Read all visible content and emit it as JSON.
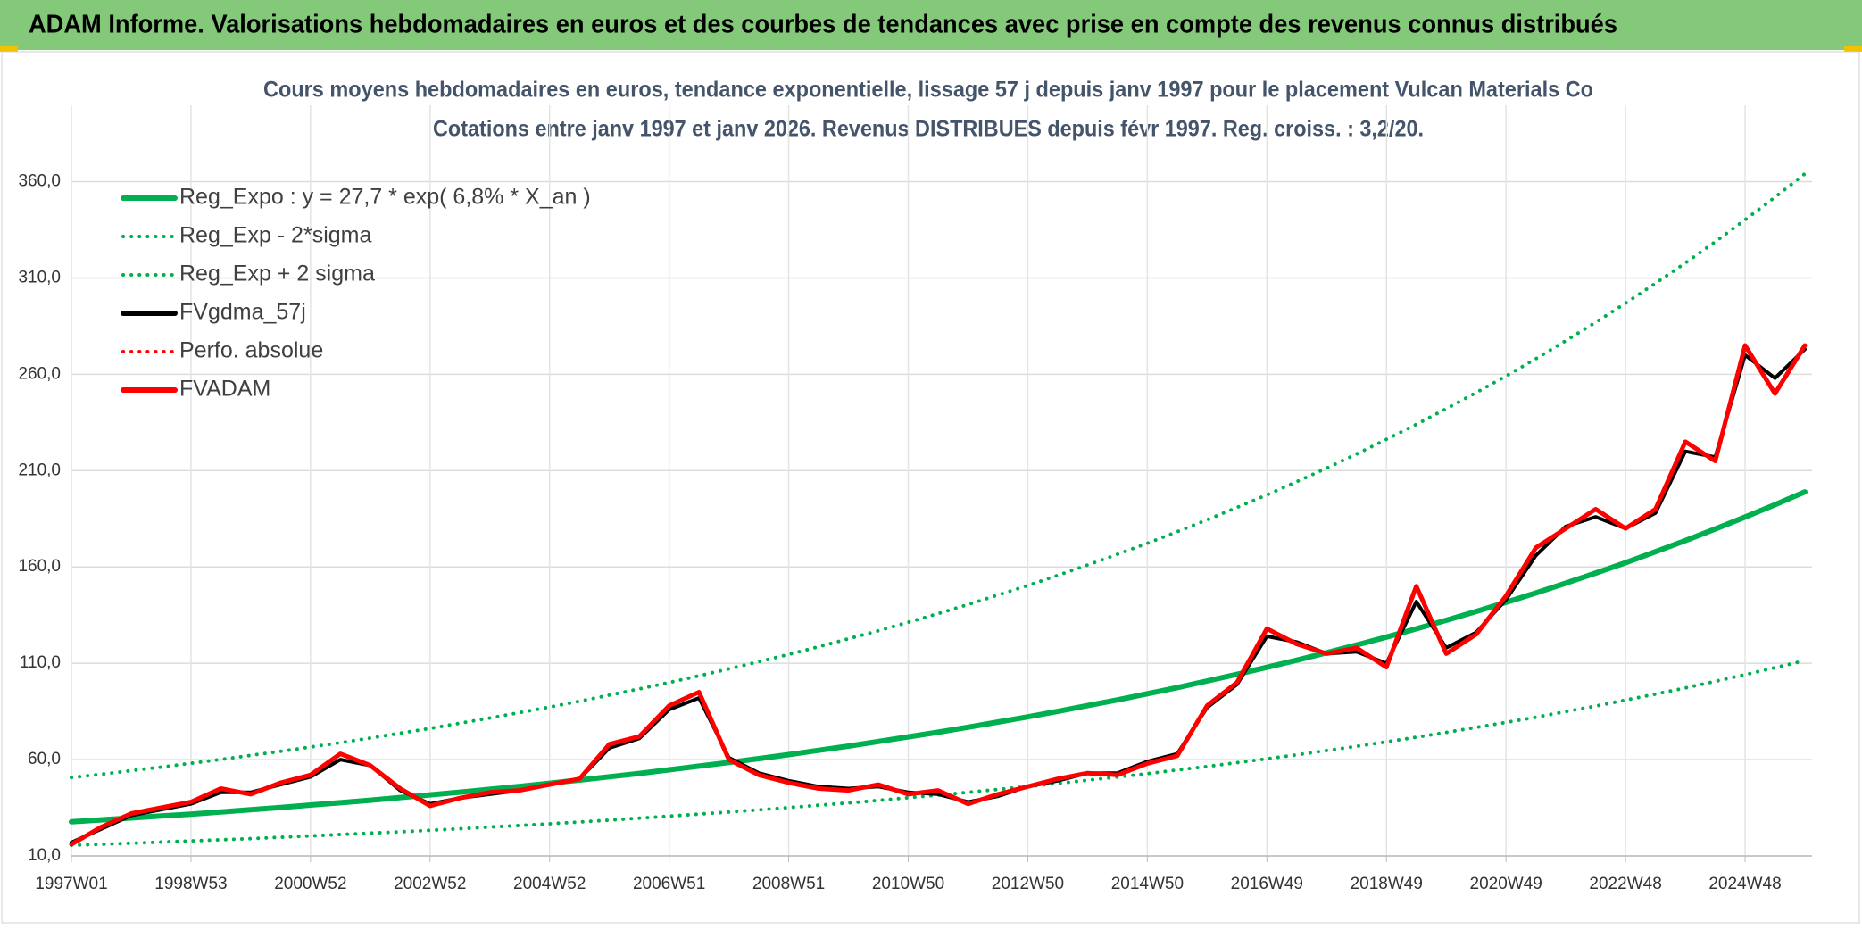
{
  "header": {
    "title": "ADAM Informe. Valorisations hebdomadaires en euros et des courbes de tendances avec prise en compte des revenus connus distribués"
  },
  "chart_data": {
    "type": "line",
    "title": "Cours moyens hebdomadaires en euros, tendance exponentielle, lissage 57 j depuis janv 1997 pour le placement Vulcan Materials Co",
    "subtitle": "Cotations entre janv 1997 et janv 2026. Revenus DISTRIBUES depuis févr 1997. Reg. croiss. : 3,2/20.",
    "categories": [
      "1997W01",
      null,
      null,
      null,
      "1998W53",
      null,
      null,
      null,
      "2000W52",
      null,
      null,
      null,
      "2002W52",
      null,
      null,
      null,
      "2004W52",
      null,
      null,
      null,
      "2006W51",
      null,
      null,
      null,
      "2008W51",
      null,
      null,
      null,
      "2010W50",
      null,
      null,
      null,
      "2012W50",
      null,
      null,
      null,
      "2014W50",
      null,
      null,
      null,
      "2016W49",
      null,
      null,
      null,
      "2018W49",
      null,
      null,
      null,
      "2020W49",
      null,
      null,
      null,
      "2022W48",
      null,
      null,
      null,
      "2024W48",
      null,
      null
    ],
    "ylim": [
      10,
      395
    ],
    "yticks": [
      {
        "value": 10,
        "label": "10,0"
      },
      {
        "value": 60,
        "label": "60,0"
      },
      {
        "value": 110,
        "label": "110,0"
      },
      {
        "value": 160,
        "label": "160,0"
      },
      {
        "value": 210,
        "label": "210,0"
      },
      {
        "value": 260,
        "label": "260,0"
      },
      {
        "value": 310,
        "label": "310,0"
      },
      {
        "value": 360,
        "label": "360,0"
      }
    ],
    "grid": true,
    "legend": "upper left",
    "series": [
      {
        "name": "Reg_Expo : y = 27,7 * exp( 6,8% *  X_an )",
        "color": "#00b050",
        "dotted": false,
        "values": [
          27.7,
          28.7,
          29.7,
          30.7,
          31.7,
          32.8,
          34.0,
          35.1,
          36.4,
          37.6,
          38.9,
          40.3,
          41.7,
          43.1,
          44.6,
          46.1,
          47.7,
          49.4,
          51.1,
          52.8,
          54.7,
          56.6,
          58.5,
          60.5,
          62.6,
          64.8,
          67.0,
          69.4,
          71.8,
          74.2,
          76.8,
          79.5,
          82.2,
          85.0,
          88.0,
          91.0,
          94.2,
          97.4,
          100.8,
          104.3,
          107.9,
          111.6,
          115.5,
          119.5,
          123.6,
          127.9,
          132.3,
          136.9,
          141.6,
          146.5,
          151.6,
          156.8,
          162.2,
          167.9,
          173.7,
          179.7,
          185.9,
          192.3,
          199.0
        ]
      },
      {
        "name": "Reg_Exp - 2*sigma",
        "color": "#00b050",
        "dotted": true,
        "values": [
          15.5,
          16.0,
          16.6,
          17.2,
          17.8,
          18.4,
          19.0,
          19.7,
          20.4,
          21.1,
          21.8,
          22.5,
          23.3,
          24.1,
          25.0,
          25.8,
          26.7,
          27.6,
          28.6,
          29.6,
          30.6,
          31.7,
          32.8,
          33.9,
          35.1,
          36.3,
          37.5,
          38.8,
          40.2,
          41.6,
          43.0,
          44.5,
          46.0,
          47.6,
          49.3,
          51.0,
          52.7,
          54.6,
          56.4,
          58.4,
          60.4,
          62.5,
          64.7,
          66.9,
          69.2,
          71.6,
          74.1,
          76.7,
          79.3,
          82.0,
          84.9,
          87.8,
          90.9,
          94.0,
          97.2,
          100.6,
          104.1,
          107.7,
          111.4
        ]
      },
      {
        "name": "Reg_Exp + 2 sigma",
        "color": "#00b050",
        "dotted": true,
        "values": [
          50.7,
          52.4,
          54.3,
          56.1,
          58.1,
          60.1,
          62.2,
          64.3,
          66.5,
          68.8,
          71.2,
          73.7,
          76.2,
          78.9,
          81.6,
          84.4,
          87.3,
          90.3,
          93.5,
          96.7,
          100.0,
          103.5,
          107.1,
          110.8,
          114.6,
          118.6,
          122.7,
          126.9,
          131.3,
          135.8,
          140.5,
          145.4,
          150.4,
          155.6,
          161.0,
          166.6,
          172.3,
          178.3,
          184.5,
          190.9,
          197.4,
          204.3,
          211.3,
          218.6,
          226.2,
          234.0,
          242.1,
          250.5,
          259.1,
          268.1,
          277.4,
          287.0,
          296.9,
          307.2,
          317.8,
          328.8,
          340.2,
          351.9,
          364.1
        ]
      },
      {
        "name": "FVgdma_57j",
        "color": "#000000",
        "dotted": false,
        "values": [
          17,
          24,
          31,
          34,
          37,
          43,
          43,
          47,
          51,
          60,
          57,
          44,
          37,
          40,
          42,
          44,
          47,
          50,
          66,
          71,
          86,
          92,
          61,
          53,
          49,
          46,
          45,
          46,
          43,
          42,
          38,
          41,
          46,
          49,
          53,
          53,
          59,
          63,
          87,
          99,
          124,
          121,
          115,
          116,
          110,
          142,
          118,
          126,
          143,
          166,
          181,
          186,
          180,
          188,
          220,
          217,
          270,
          258,
          273
        ]
      },
      {
        "name": "Perfo. absolue",
        "color": "#ff0000",
        "dotted": true,
        "values": [
          16,
          25,
          32,
          35,
          38,
          45,
          42,
          48,
          52,
          63,
          57,
          45,
          36,
          40,
          43,
          44,
          47,
          50,
          68,
          72,
          88,
          95,
          60,
          52,
          48,
          45,
          44,
          47,
          42,
          44,
          37,
          42,
          46,
          50,
          53,
          52,
          58,
          62,
          88,
          100,
          128,
          120,
          115,
          118,
          108,
          150,
          115,
          125,
          145,
          170,
          180,
          190,
          180,
          190,
          225,
          215,
          275,
          250,
          275
        ]
      },
      {
        "name": "FVADAM",
        "color": "#ff0000",
        "dotted": false,
        "values": [
          16,
          25,
          32,
          35,
          38,
          45,
          42,
          48,
          52,
          63,
          57,
          45,
          36,
          40,
          43,
          44,
          47,
          50,
          68,
          72,
          88,
          95,
          60,
          52,
          48,
          45,
          44,
          47,
          42,
          44,
          37,
          42,
          46,
          50,
          53,
          52,
          58,
          62,
          88,
          100,
          128,
          120,
          115,
          118,
          108,
          150,
          115,
          125,
          145,
          170,
          180,
          190,
          180,
          190,
          225,
          215,
          275,
          250,
          275
        ]
      }
    ]
  }
}
